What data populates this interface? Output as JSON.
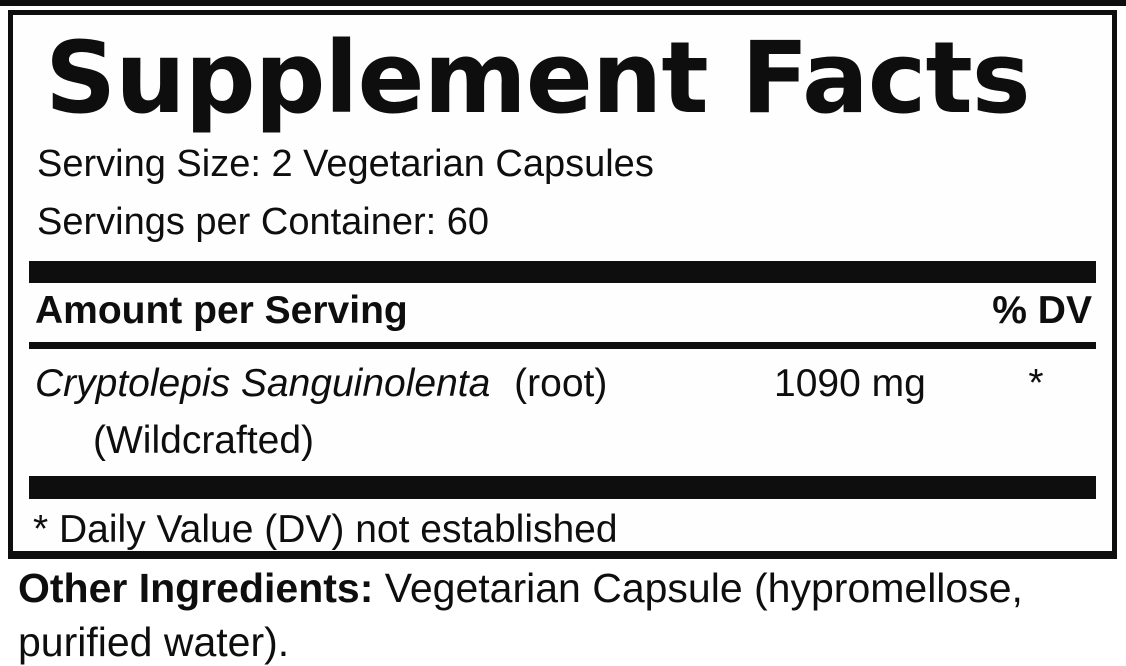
{
  "panel": {
    "title": "Supplement Facts",
    "serving_size": "Serving Size: 2 Vegetarian Capsules",
    "servings_per_container": "Servings per Container: 60",
    "columns": {
      "amount": "Amount per Serving",
      "dv": "% DV"
    },
    "ingredients": [
      {
        "name": "Cryptolepis Sanguinolenta",
        "part": "(root)",
        "detail": "(Wildcrafted)",
        "amount": "1090 mg",
        "dv": "*"
      }
    ],
    "footnote": "* Daily Value (DV) not established",
    "other_ingredients": {
      "label": "Other Ingredients:",
      "text": " Vegetarian Capsule (hypromellose, purified water)."
    },
    "colors": {
      "ink": "#0e0e0e",
      "background": "#ffffff"
    }
  }
}
